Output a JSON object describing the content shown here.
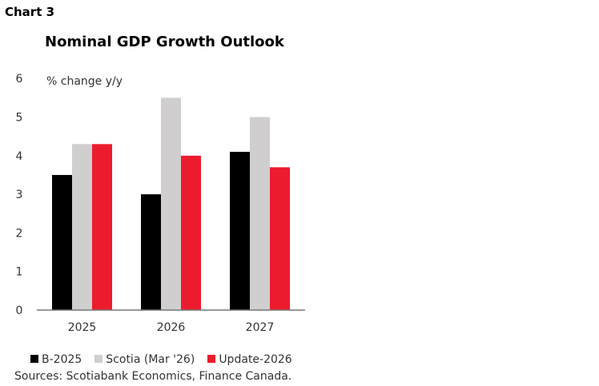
{
  "chart_label": "Chart 3",
  "chart_data": {
    "type": "bar",
    "title": "Nominal GDP Growth Outlook",
    "ylabel": "% change y/y",
    "xlabel": "",
    "ylim": [
      0,
      6
    ],
    "yticks": [
      "0",
      "1",
      "2",
      "3",
      "4",
      "5",
      "6"
    ],
    "categories": [
      "2025",
      "2026",
      "2027"
    ],
    "series": [
      {
        "name": "B-2025",
        "color": "#000000",
        "values": [
          3.5,
          3.0,
          4.1
        ]
      },
      {
        "name": "Scotia (Mar '26)",
        "color": "#d0cecf",
        "values": [
          4.3,
          5.5,
          5.0
        ]
      },
      {
        "name": "Update-2026",
        "color": "#ec1c2e",
        "values": [
          4.3,
          4.0,
          3.7
        ]
      }
    ],
    "grid": false,
    "legend_placement": "bottom"
  },
  "source": "Sources: Scotiabank Economics, Finance Canada."
}
